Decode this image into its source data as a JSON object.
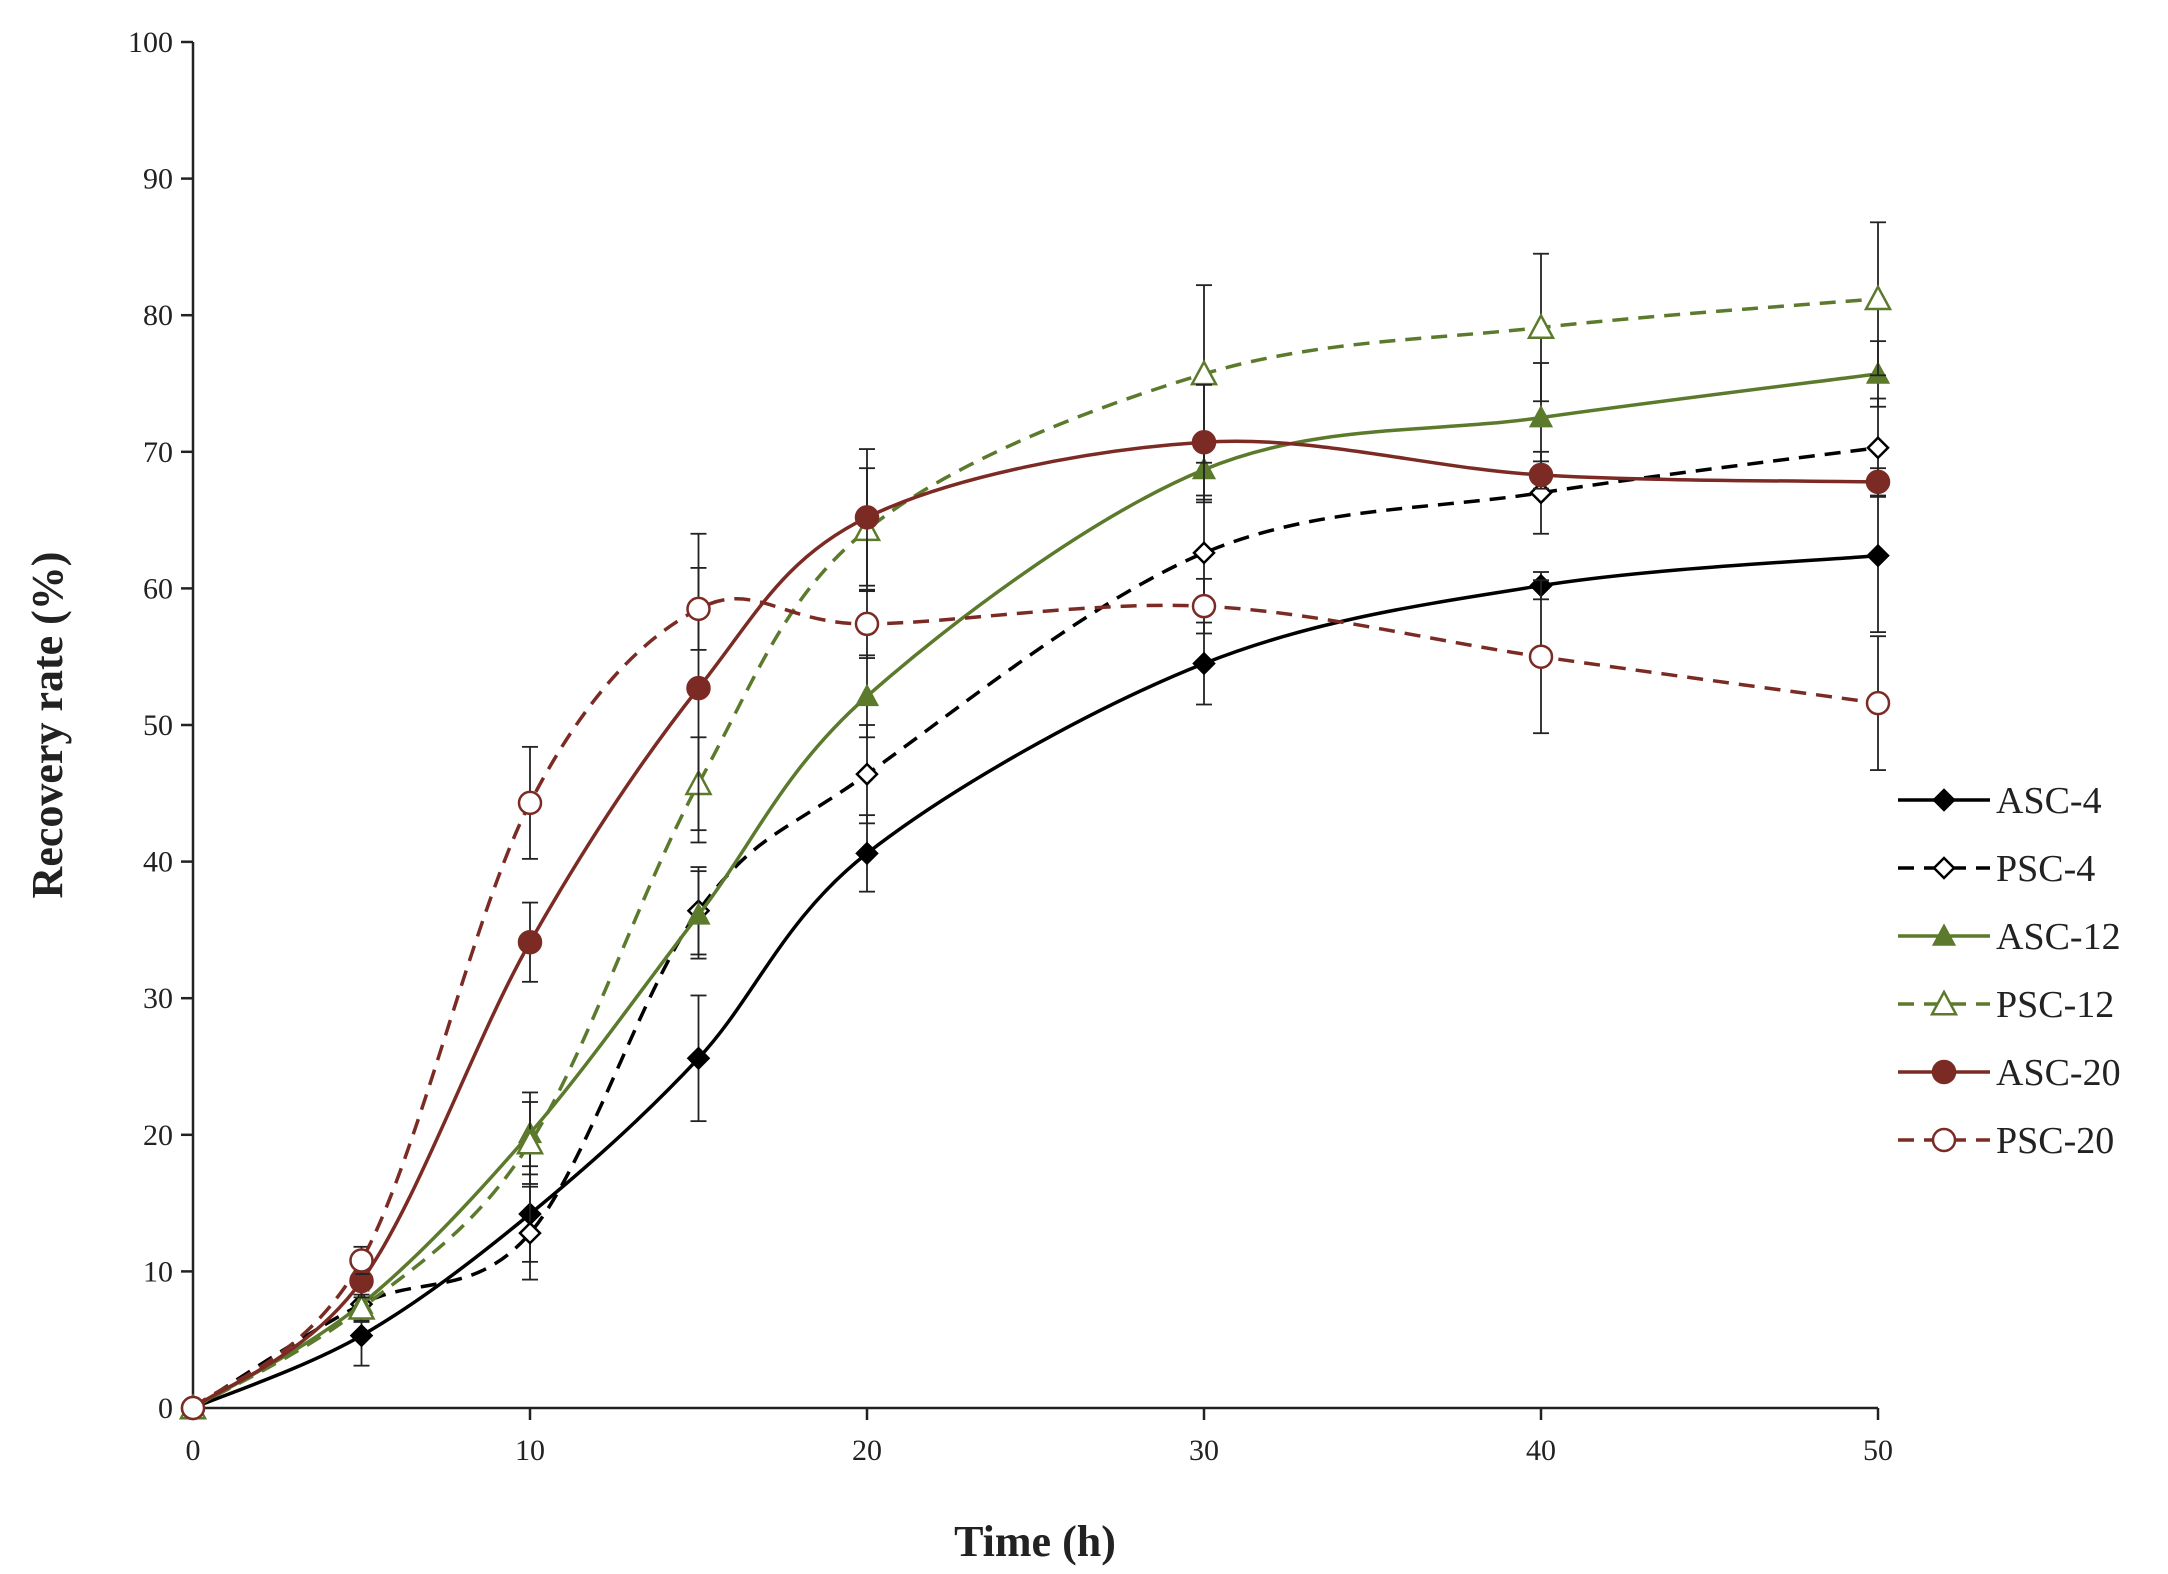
{
  "chart_data": {
    "type": "line",
    "title": "",
    "xlabel": "Time (h)",
    "ylabel": "Recovery rate (%)",
    "xlim": [
      0,
      50
    ],
    "ylim": [
      0,
      100
    ],
    "x_ticks": [
      0,
      10,
      20,
      30,
      40,
      50
    ],
    "y_ticks": [
      0,
      10,
      20,
      30,
      40,
      50,
      60,
      70,
      80,
      90,
      100
    ],
    "grid": false,
    "legend_position": "right",
    "x": [
      0,
      5,
      10,
      15,
      20,
      30,
      40,
      50
    ],
    "series": [
      {
        "name": "ASC-4",
        "color": "#000000",
        "dashed": false,
        "marker": "diamond",
        "filled": true,
        "values": [
          0,
          5.3,
          14.2,
          25.6,
          40.6,
          54.5,
          60.2,
          62.4
        ],
        "errors": [
          0,
          2.2,
          3.5,
          4.6,
          2.8,
          3.0,
          1.0,
          5.6
        ]
      },
      {
        "name": "PSC-4",
        "color": "#000000",
        "dashed": true,
        "marker": "diamond",
        "filled": false,
        "values": [
          0,
          7.6,
          12.8,
          36.4,
          46.4,
          62.6,
          67.0,
          70.3
        ],
        "errors": [
          0,
          1.2,
          3.4,
          3.2,
          3.6,
          4.2,
          3.0,
          3.6
        ]
      },
      {
        "name": "ASC-12",
        "color": "#5b7a2c",
        "dashed": false,
        "marker": "triangle",
        "filled": true,
        "values": [
          0,
          7.6,
          20.1,
          36.1,
          52.1,
          68.7,
          72.5,
          75.7
        ],
        "errors": [
          0,
          1.0,
          3.0,
          3.2,
          3.0,
          2.4,
          4.0,
          2.4
        ]
      },
      {
        "name": "PSC-12",
        "color": "#5b7a2c",
        "dashed": true,
        "marker": "triangle",
        "filled": false,
        "values": [
          0,
          7.3,
          19.4,
          45.7,
          64.3,
          75.7,
          79.1,
          81.2
        ],
        "errors": [
          0,
          1.0,
          3.0,
          3.4,
          4.5,
          6.5,
          5.4,
          5.6
        ]
      },
      {
        "name": "ASC-20",
        "color": "#7b2b24",
        "dashed": false,
        "marker": "circle",
        "filled": true,
        "values": [
          0,
          9.3,
          34.1,
          52.7,
          65.2,
          70.7,
          68.3,
          67.8
        ],
        "errors": [
          0,
          1.2,
          2.9,
          11.3,
          5.0,
          4.2,
          1.0,
          1.0
        ]
      },
      {
        "name": "PSC-20",
        "color": "#7b2b24",
        "dashed": true,
        "marker": "circle",
        "filled": false,
        "values": [
          0,
          10.8,
          44.3,
          58.5,
          57.4,
          58.7,
          55.0,
          51.6
        ],
        "errors": [
          0,
          1.0,
          4.1,
          3.0,
          2.5,
          2.0,
          5.6,
          4.9
        ]
      }
    ]
  }
}
